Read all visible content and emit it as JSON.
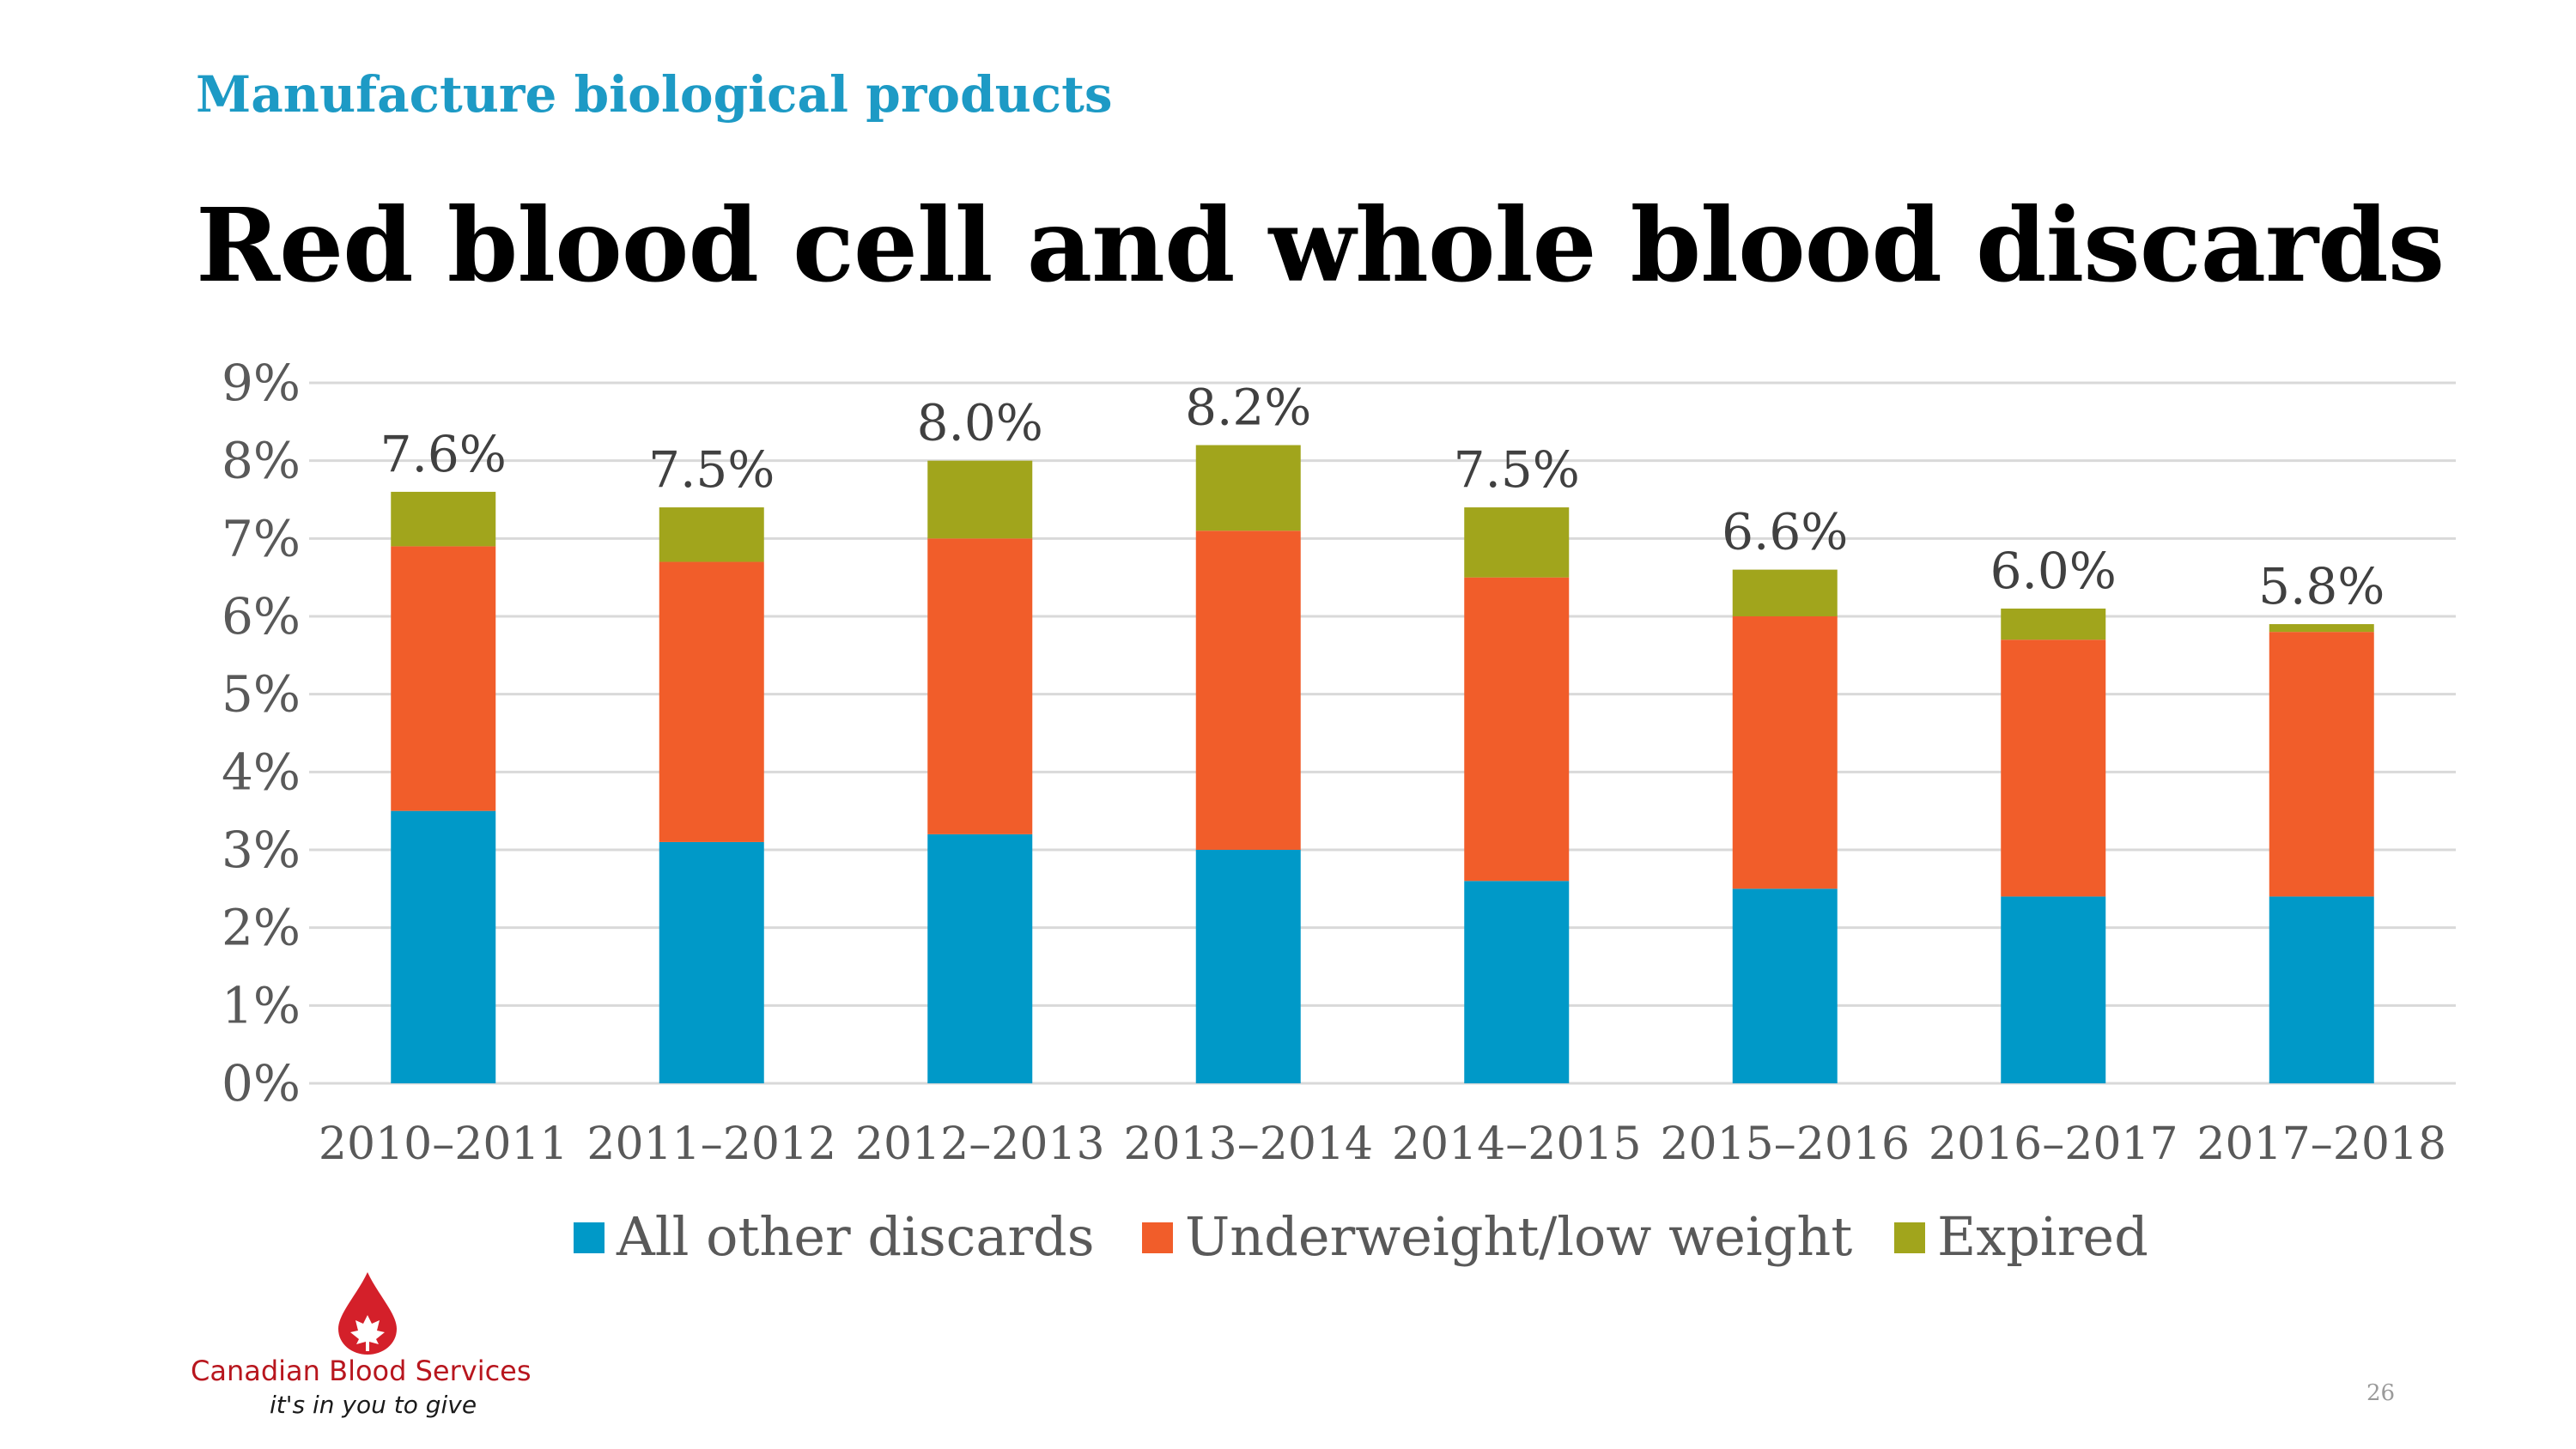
{
  "section_label": "Manufacture biological products",
  "title": "Red blood cell and whole blood discards",
  "page_number": "26",
  "logo": {
    "name": "Canadian Blood Services",
    "tagline": "it's in you to give",
    "icon": "blood-drop-maple-leaf-icon"
  },
  "chart_data": {
    "type": "bar",
    "stacked": true,
    "categories": [
      "2010–2011",
      "2011–2012",
      "2012–2013",
      "2013–2014",
      "2014–2015",
      "2015–2016",
      "2016–2017",
      "2017–2018"
    ],
    "series": [
      {
        "name": "All other discards",
        "color": "#0099c8",
        "values": [
          3.5,
          3.1,
          3.2,
          3.0,
          2.6,
          2.5,
          2.4,
          2.4
        ]
      },
      {
        "name": "Underweight/low weight",
        "color": "#f15d2a",
        "values": [
          3.4,
          3.6,
          3.8,
          4.1,
          3.9,
          3.5,
          3.3,
          3.4
        ]
      },
      {
        "name": "Expired",
        "color": "#a1a51c",
        "values": [
          0.7,
          0.7,
          1.0,
          1.1,
          0.9,
          0.6,
          0.4,
          0.1
        ]
      }
    ],
    "totals": [
      "7.6%",
      "7.5%",
      "8.0%",
      "8.2%",
      "7.5%",
      "6.6%",
      "6.0%",
      "5.8%"
    ],
    "y_ticks": [
      "0%",
      "1%",
      "2%",
      "3%",
      "4%",
      "5%",
      "6%",
      "7%",
      "8%",
      "9%"
    ],
    "ylim": [
      0,
      9
    ],
    "grid": true,
    "legend_position": "bottom",
    "title": "",
    "xlabel": "",
    "ylabel": ""
  }
}
